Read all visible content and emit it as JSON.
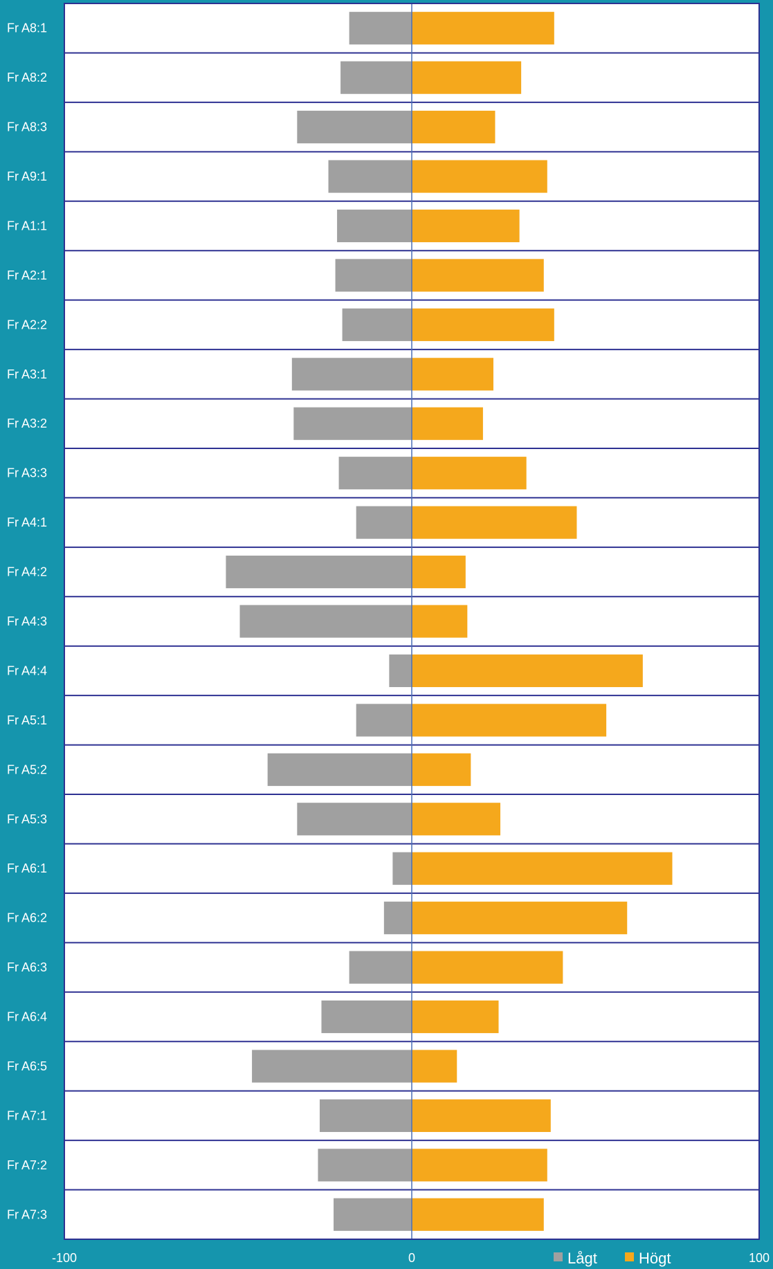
{
  "chart_data": {
    "type": "bar",
    "orientation": "horizontal",
    "stacked": "diverging",
    "categories": [
      "Fr A8:1",
      "Fr A8:2",
      "Fr A8:3",
      "Fr A9:1",
      "Fr A1:1",
      "Fr A2:1",
      "Fr A2:2",
      "Fr A3:1",
      "Fr A3:2",
      "Fr A3:3",
      "Fr A4:1",
      "Fr A4:2",
      "Fr A4:3",
      "Fr A4:4",
      "Fr A5:1",
      "Fr A5:2",
      "Fr A5:3",
      "Fr A6:1",
      "Fr A6:2",
      "Fr A6:3",
      "Fr A6:4",
      "Fr A6:5",
      "Fr A7:1",
      "Fr A7:2",
      "Fr A7:3"
    ],
    "series": [
      {
        "name": "Lågt",
        "color": "#a0a0a0",
        "values": [
          -18,
          -20.5,
          -33,
          -24,
          -21.5,
          -22,
          -20,
          -34.5,
          -34,
          -21,
          -16,
          -53.5,
          -49.5,
          -6.5,
          -16,
          -41.5,
          -33,
          -5.5,
          -8,
          -18,
          -26,
          -46,
          -26.5,
          -27,
          -22.5
        ]
      },
      {
        "name": "Högt",
        "color": "#f5a81c",
        "values": [
          41,
          31.5,
          24,
          39,
          31,
          38,
          41,
          23.5,
          20.5,
          33,
          47.5,
          15.5,
          16,
          66.5,
          56,
          17,
          25.5,
          75,
          62,
          43.5,
          25,
          13,
          40,
          39,
          38
        ]
      }
    ],
    "xlim": [
      -100,
      100
    ],
    "xticks": [
      "-100",
      "0",
      "100"
    ],
    "title": "",
    "xlabel": "",
    "ylabel": "",
    "grid": "horizontal row separators",
    "legend_position": "bottom-right",
    "colors": {
      "background": "#1595ad",
      "plot_background": "#ffffff",
      "frame": "#2e3192",
      "zero_line": "#4a6fb5"
    }
  }
}
